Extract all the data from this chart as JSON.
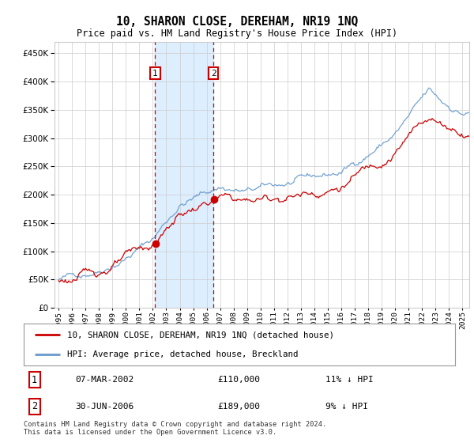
{
  "title": "10, SHARON CLOSE, DEREHAM, NR19 1NQ",
  "subtitle": "Price paid vs. HM Land Registry's House Price Index (HPI)",
  "ytick_values": [
    0,
    50000,
    100000,
    150000,
    200000,
    250000,
    300000,
    350000,
    400000,
    450000
  ],
  "ylim": [
    0,
    470000
  ],
  "xlim_start": 1994.7,
  "xlim_end": 2025.5,
  "transaction1": {
    "date_num": 2002.18,
    "price": 110000,
    "label": "1",
    "date_str": "07-MAR-2002",
    "pct": "11%",
    "dir": "↓"
  },
  "transaction2": {
    "date_num": 2006.5,
    "price": 189000,
    "label": "2",
    "date_str": "30-JUN-2006",
    "pct": "9%",
    "dir": "↓"
  },
  "legend_line1": "10, SHARON CLOSE, DEREHAM, NR19 1NQ (detached house)",
  "legend_line2": "HPI: Average price, detached house, Breckland",
  "footnote": "Contains HM Land Registry data © Crown copyright and database right 2024.\nThis data is licensed under the Open Government Licence v3.0.",
  "property_line_color": "#cc0000",
  "hpi_line_color": "#6699cc",
  "shaded_region_color": "#ddeeff",
  "grid_color": "#cccccc",
  "background_color": "#ffffff",
  "dashed_line_color": "#cc0000"
}
